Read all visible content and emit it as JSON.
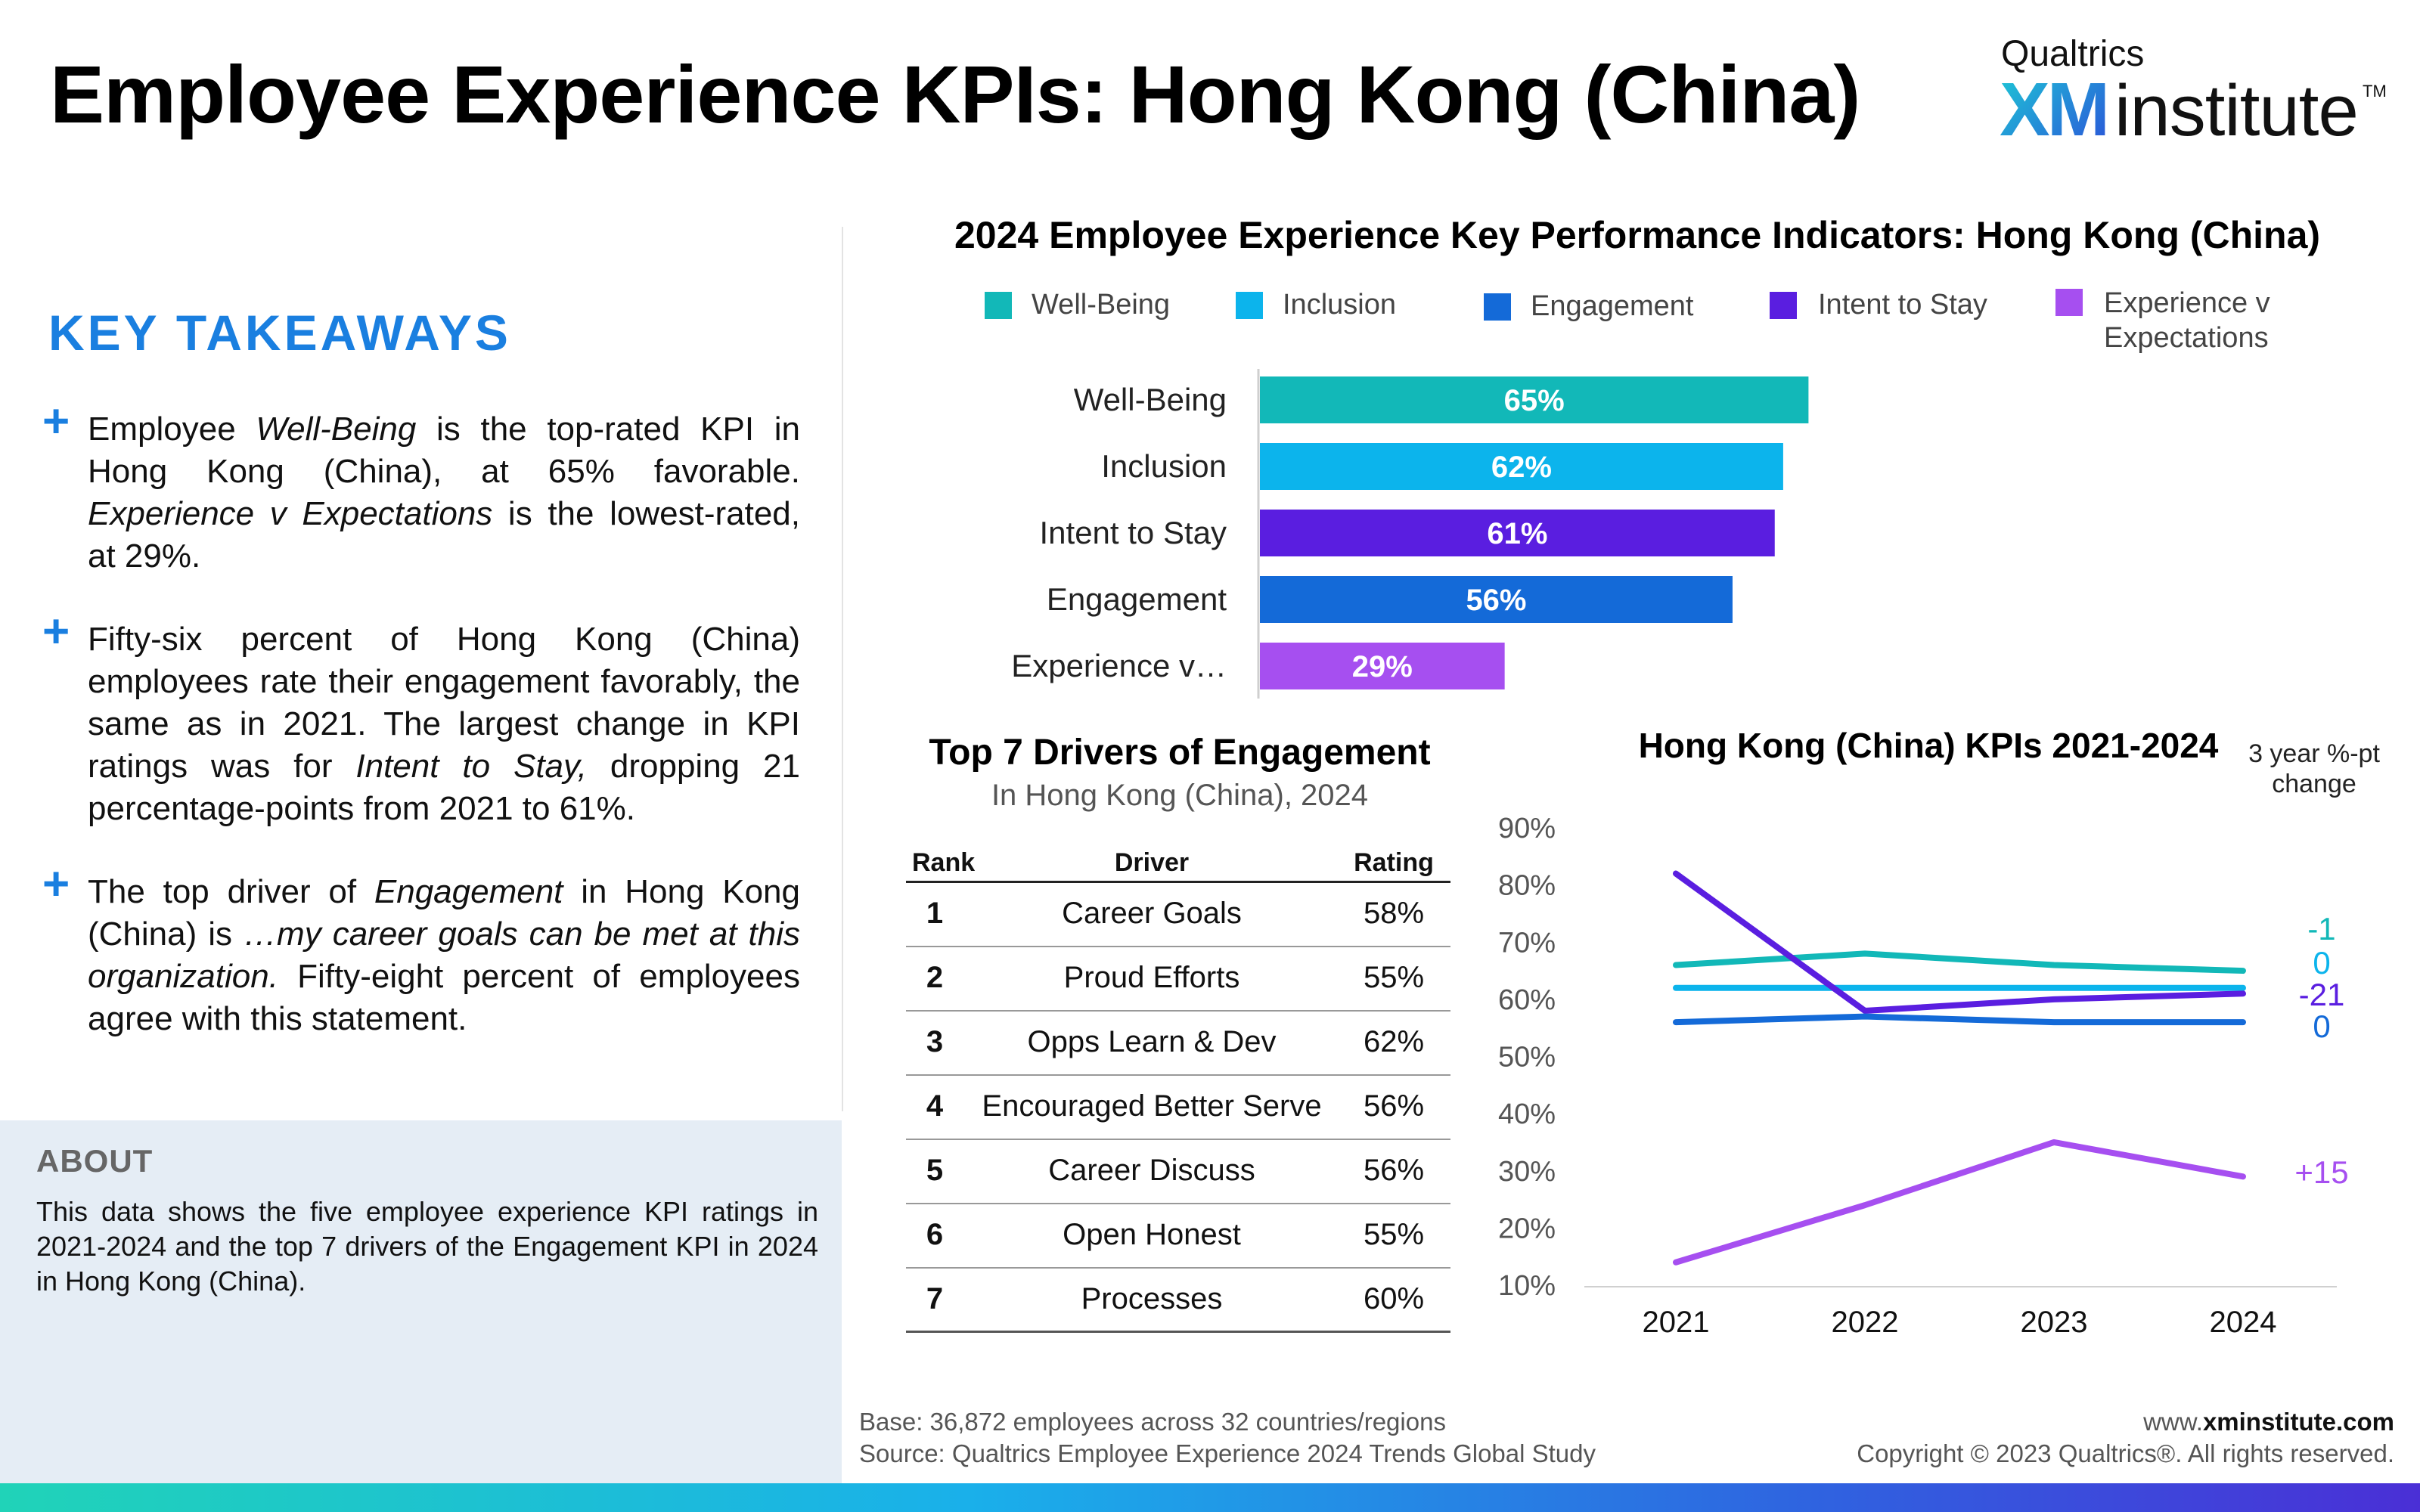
{
  "header": {
    "title": "Employee Experience KPIs: Hong Kong (China)"
  },
  "logo": {
    "brand": "Qualtrics",
    "xm": "XM",
    "institute": "institute",
    "tm": "TM"
  },
  "takeaways": {
    "heading": "KEY TAKEAWAYS",
    "items": [
      [
        {
          "t": "Employee "
        },
        {
          "t": "Well-Being",
          "i": true
        },
        {
          "t": " is the top-rated KPI in Hong Kong (China), at 65% favorable. "
        },
        {
          "t": "Experience v Expectations",
          "i": true
        },
        {
          "t": " is the lowest-rated, at 29%."
        }
      ],
      [
        {
          "t": "Fifty-six percent of Hong Kong (China) employees rate their engagement favorably, the same as in 2021. The largest change in KPI ratings was for "
        },
        {
          "t": "Intent to Stay,",
          "i": true
        },
        {
          "t": " dropping 21 percentage-points from 2021 to 61%."
        }
      ],
      [
        {
          "t": "The top driver of "
        },
        {
          "t": "Engagement",
          "i": true
        },
        {
          "t": " in Hong Kong (China) is "
        },
        {
          "t": "…my career goals can be met at this organization.",
          "i": true
        },
        {
          "t": " Fifty-eight percent of employees agree with this statement."
        }
      ]
    ]
  },
  "about": {
    "heading": "ABOUT",
    "text": "This data shows the five employee experience KPI ratings in 2021-2024 and the top 7 drivers of the Engagement KPI in 2024 in Hong Kong (China)."
  },
  "legend": [
    {
      "label": "Well-Being",
      "color": "#12b8b8"
    },
    {
      "label": "Inclusion",
      "color": "#0cb4ec"
    },
    {
      "label": "Engagement",
      "color": "#146ad8"
    },
    {
      "label": "Intent to Stay",
      "color": "#5a1ee0"
    },
    {
      "label": "Experience v Expectations",
      "color": "#a64ff0"
    }
  ],
  "table": {
    "title": "Top 7 Drivers of Engagement",
    "subtitle": "In Hong Kong (China), 2024",
    "headers": [
      "Rank",
      "Driver",
      "Rating"
    ],
    "rows": [
      [
        "1",
        "Career Goals",
        "58%"
      ],
      [
        "2",
        "Proud Efforts",
        "55%"
      ],
      [
        "3",
        "Opps Learn & Dev",
        "62%"
      ],
      [
        "4",
        "Encouraged Better Serve",
        "56%"
      ],
      [
        "5",
        "Career Discuss",
        "56%"
      ],
      [
        "6",
        "Open Honest",
        "55%"
      ],
      [
        "7",
        "Processes",
        "60%"
      ]
    ]
  },
  "chart_data": [
    {
      "type": "bar",
      "title": "2024 Employee Experience Key Performance Indicators: Hong Kong (China)",
      "orientation": "horizontal",
      "categories": [
        "Well-Being",
        "Inclusion",
        "Intent to Stay",
        "Engagement",
        "Experience v…"
      ],
      "values": [
        65,
        62,
        61,
        56,
        29
      ],
      "value_labels": [
        "65%",
        "62%",
        "61%",
        "56%",
        "29%"
      ],
      "colors": [
        "#12b8b8",
        "#0cb4ec",
        "#5a1ee0",
        "#146ad8",
        "#a64ff0"
      ],
      "xlim": [
        0,
        100
      ],
      "legend_position": "top"
    },
    {
      "type": "line",
      "title": "Hong Kong (China) KPIs 2021-2024",
      "x": [
        "2021",
        "2022",
        "2023",
        "2024"
      ],
      "ylim": [
        10,
        90
      ],
      "yticks": [
        "10%",
        "20%",
        "30%",
        "40%",
        "50%",
        "60%",
        "70%",
        "80%",
        "90%"
      ],
      "change_header": "3 year %-pt change",
      "series": [
        {
          "name": "Well-Being",
          "values": [
            66,
            68,
            66,
            65
          ],
          "color": "#12b8b8",
          "change": "-1"
        },
        {
          "name": "Inclusion",
          "values": [
            62,
            62,
            62,
            62
          ],
          "color": "#0cb4ec",
          "change": "0"
        },
        {
          "name": "Intent to Stay",
          "values": [
            82,
            58,
            60,
            61
          ],
          "color": "#5a1ee0",
          "change": "-21"
        },
        {
          "name": "Engagement",
          "values": [
            56,
            57,
            56,
            56
          ],
          "color": "#146ad8",
          "change": "0"
        },
        {
          "name": "Experience v Expectations",
          "values": [
            14,
            24,
            35,
            29
          ],
          "color": "#a64ff0",
          "change": "+15"
        }
      ]
    }
  ],
  "footer": {
    "base": "Base: 36,872 employees across 32 countries/regions",
    "source": "Source: Qualtrics Employee Experience 2024 Trends Global Study",
    "url_prefix": "www.",
    "url_bold": "xminstitute",
    "url_suffix": ".com",
    "copyright": "Copyright © 2023 Qualtrics®. All rights reserved."
  }
}
